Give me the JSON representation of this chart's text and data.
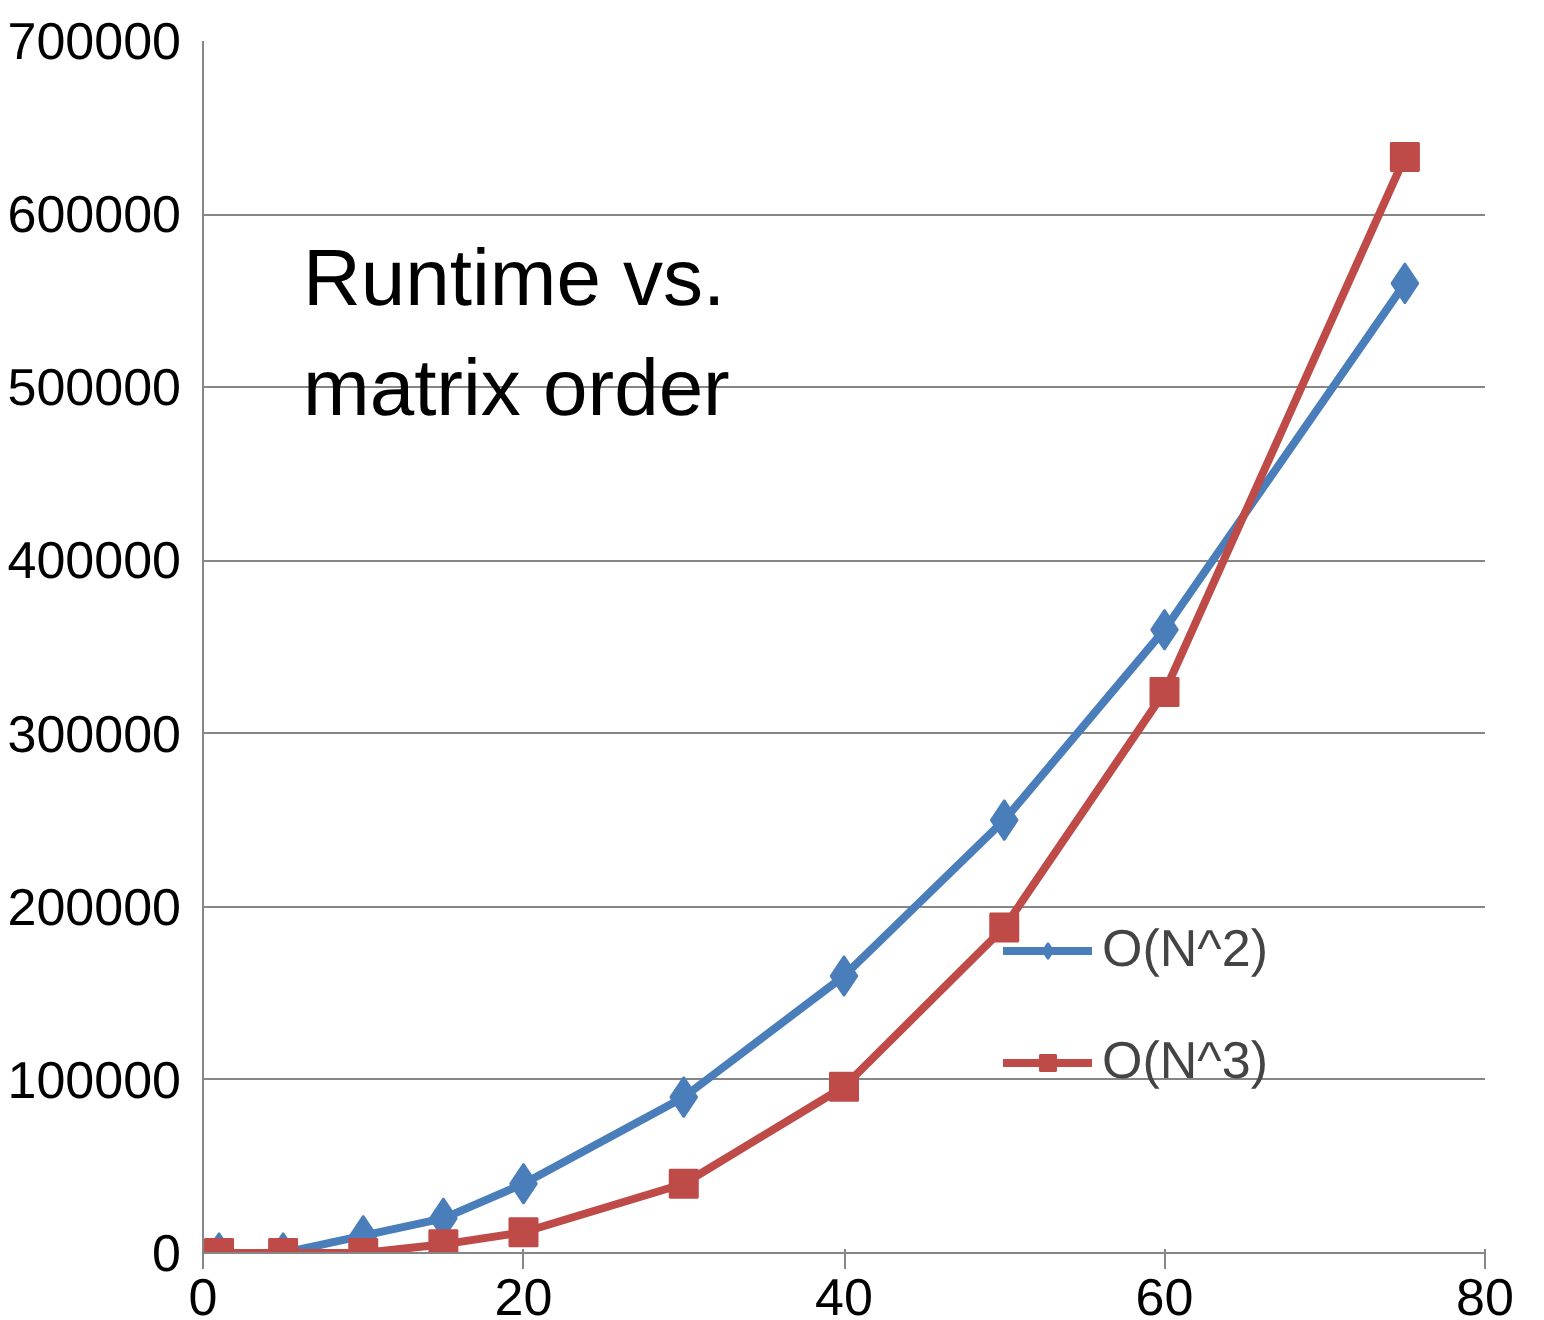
{
  "chart_data": {
    "type": "line",
    "title": "Runtime vs.\nmatrix order",
    "x": [
      1,
      5,
      10,
      15,
      20,
      30,
      40,
      50,
      60,
      75
    ],
    "series": [
      {
        "name": "O(N^2)",
        "color": "#4a7ebb",
        "marker": "diamond",
        "values": [
          0,
          0,
          10000,
          20000,
          40000,
          90000,
          160000,
          250000,
          360000,
          560000
        ]
      },
      {
        "name": "O(N^3)",
        "color": "#be4b48",
        "marker": "square",
        "values": [
          0,
          0,
          0,
          5000,
          12000,
          40000,
          96000,
          188000,
          324000,
          633000
        ]
      }
    ],
    "xlim": [
      0,
      80
    ],
    "xticks": [
      0,
      20,
      40,
      60,
      80
    ],
    "ylim": [
      0,
      700000
    ],
    "yticks": [
      0,
      100000,
      200000,
      300000,
      400000,
      500000,
      600000,
      700000
    ],
    "grid": "y",
    "legend": "right",
    "line_style": "solid"
  }
}
